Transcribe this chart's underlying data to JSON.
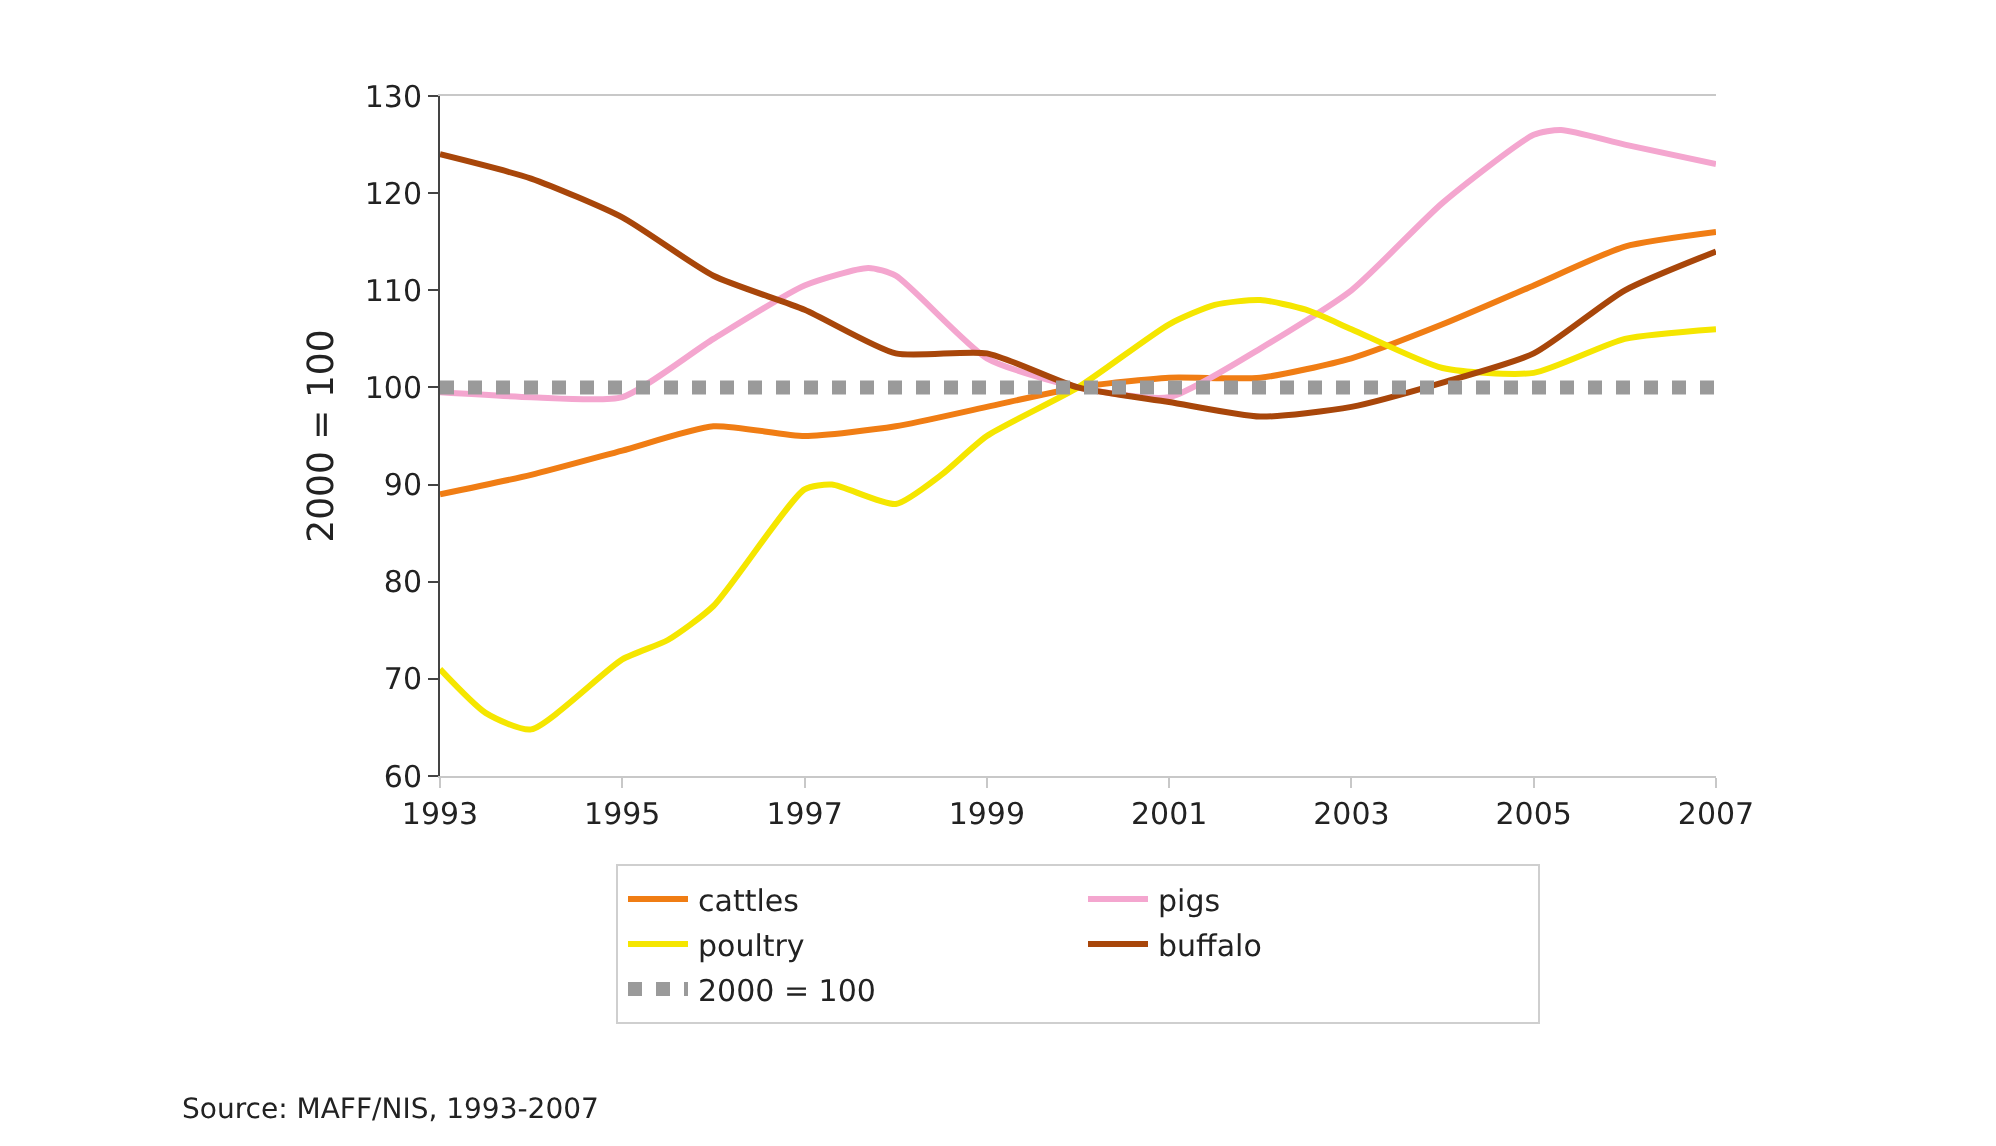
{
  "chart_data": {
    "type": "line",
    "ylabel": "2000 = 100",
    "xlim": [
      1993,
      2007
    ],
    "xticks": [
      1993,
      1995,
      1997,
      1999,
      2001,
      2003,
      2005,
      2007
    ],
    "ylim": [
      60,
      130
    ],
    "yticks": [
      60,
      70,
      80,
      90,
      100,
      110,
      120,
      130
    ],
    "grid": false,
    "legend": "bottom",
    "marker": "none",
    "annotations": [
      "Source: MAFF/NIS, 1993-2007"
    ],
    "series": [
      {
        "name": "cattles",
        "color": "#f07d14",
        "x": [
          1993,
          1994,
          1995,
          1996,
          1997,
          1998,
          1999,
          2000,
          2001,
          2002,
          2003,
          2004,
          2005,
          2006,
          2007
        ],
        "values": [
          89,
          91,
          93.5,
          96,
          95,
          96,
          98,
          100,
          101,
          101,
          103,
          106.5,
          110.5,
          114.5,
          116
        ]
      },
      {
        "name": "pigs",
        "color": "#f4a6cf",
        "x": [
          1993,
          1994,
          1995,
          1996,
          1997,
          1997.7,
          1998,
          1999,
          2000,
          2001,
          2002,
          2003,
          2004,
          2005,
          2005.3,
          2006,
          2007
        ],
        "values": [
          99.5,
          99,
          99,
          105,
          110.5,
          112.3,
          111.5,
          103,
          100,
          99,
          104,
          110,
          119,
          126,
          126.5,
          125,
          123
        ]
      },
      {
        "name": "poultry",
        "color": "#f5e600",
        "x": [
          1993,
          1993.5,
          1994,
          1995,
          1995.5,
          1996,
          1997,
          1997.3,
          1998,
          1998.5,
          1999,
          2000,
          2001,
          2001.5,
          2002,
          2002.5,
          2003,
          2004,
          2005,
          2006,
          2007
        ],
        "values": [
          71,
          66.5,
          64.8,
          72,
          74,
          77.5,
          89.5,
          90,
          88,
          91,
          95,
          100,
          106.5,
          108.5,
          109,
          108,
          106,
          102,
          101.5,
          105,
          106
        ]
      },
      {
        "name": "buffalo",
        "color": "#a8460a",
        "x": [
          1993,
          1994,
          1995,
          1996,
          1997,
          1998,
          1999,
          2000,
          2001,
          2002,
          2003,
          2004,
          2005,
          2006,
          2007
        ],
        "values": [
          124,
          121.5,
          117.5,
          111.5,
          108,
          103.5,
          103.5,
          100,
          98.5,
          97,
          98,
          100.5,
          103.5,
          110,
          114
        ]
      },
      {
        "name": "2000 = 100",
        "color": "#9a9a9a",
        "line_style": "dotted",
        "x": [
          1993,
          2007
        ],
        "values": [
          100,
          100
        ]
      }
    ]
  }
}
